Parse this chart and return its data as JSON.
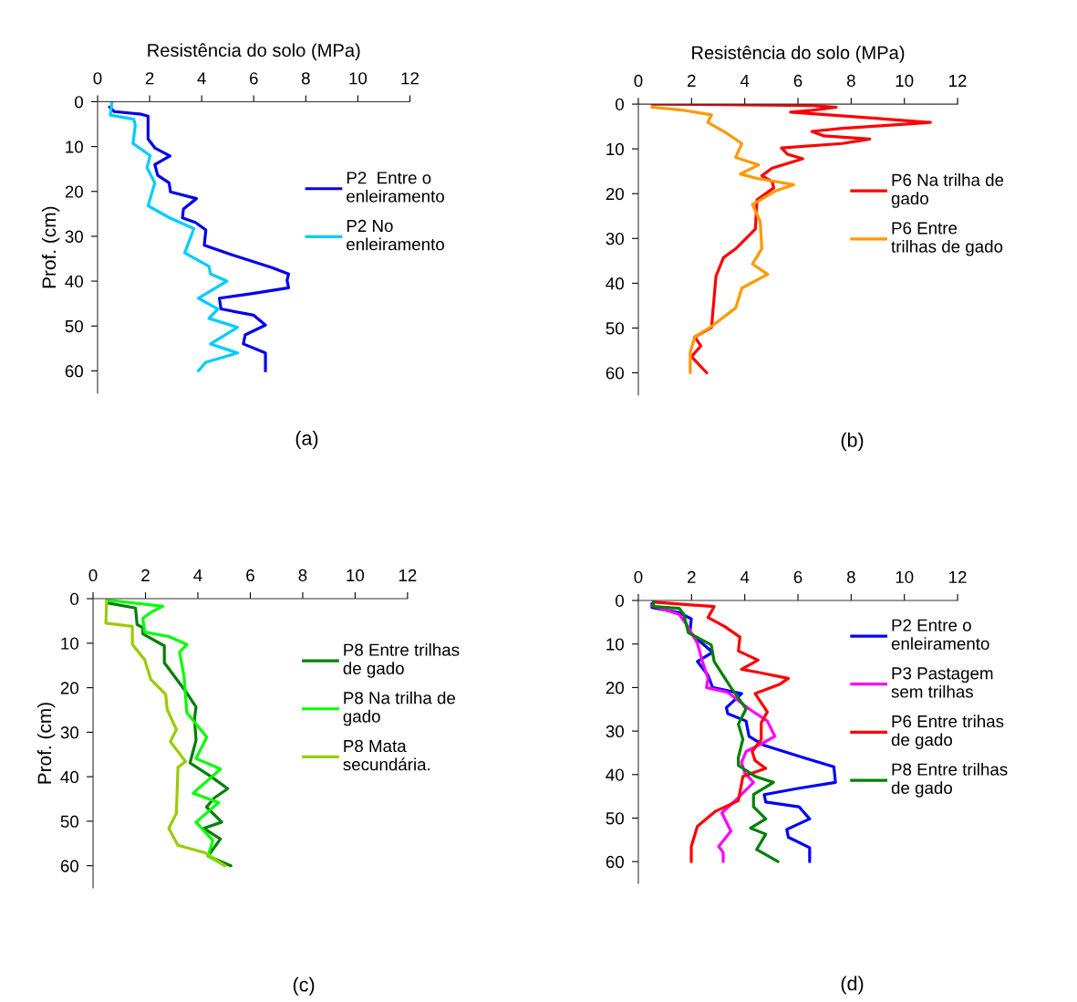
{
  "chart_data": [
    {
      "type": "line",
      "xlabel": "Resistência do solo (MPa)",
      "ylabel": "Prof. (cm)",
      "xlim": [
        0,
        12
      ],
      "xticks": [
        0,
        2,
        4,
        6,
        8,
        10,
        12
      ],
      "ylim": [
        65,
        0
      ],
      "yticks": [
        0,
        10,
        20,
        30,
        40,
        50,
        60
      ],
      "legend": "right",
      "annotations": [
        "(a)"
      ],
      "series": [
        {
          "name": "P2  Entre o\nenleiramento",
          "color": "#0000ee",
          "x": [
            0.46,
            0.64,
            1.68,
            1.94,
            1.94,
            2.2,
            2.78,
            2.2,
            2.31,
            2.75,
            2.8,
            3.8,
            3.3,
            3.26,
            3.76,
            4.16,
            4.1,
            5.09,
            6.7,
            7.34,
            7.28,
            7.34,
            5.9,
            4.68,
            4.74,
            6.0,
            6.45,
            5.67,
            5.6,
            6.45,
            6.45
          ],
          "values": [
            1.2,
            2.2,
            2.8,
            3.2,
            8.3,
            10.3,
            12.1,
            14,
            16.4,
            18.1,
            20.1,
            21.6,
            23.9,
            25.9,
            26.9,
            28.6,
            32,
            34,
            37,
            38.4,
            39.8,
            41.5,
            42.8,
            43.8,
            46.2,
            47.6,
            49.8,
            52,
            54,
            56,
            60
          ]
        },
        {
          "name": "P2 No\nenleiramento",
          "color": "#00ccff",
          "x": [
            0.55,
            0.49,
            1.39,
            1.45,
            1.36,
            2.02,
            1.9,
            2.2,
            1.94,
            2.77,
            3.7,
            3.35,
            4.28,
            4.34,
            4.97,
            3.87,
            4.62,
            4.28,
            5.38,
            4.34,
            5.38,
            4.16,
            3.87
          ],
          "values": [
            0.1,
            3,
            3.9,
            5.2,
            9.3,
            12,
            14.7,
            18.1,
            23.2,
            25.9,
            28.3,
            33.7,
            36.7,
            38.4,
            40,
            43.8,
            46.2,
            48.3,
            50.3,
            54,
            56,
            58.1,
            60
          ]
        }
      ]
    },
    {
      "type": "line",
      "xlabel": "Resistência do solo (MPa)",
      "xlim": [
        0,
        12
      ],
      "xticks": [
        0,
        2,
        4,
        6,
        8,
        10,
        12
      ],
      "ylim": [
        65,
        0
      ],
      "yticks": [
        0,
        10,
        20,
        30,
        40,
        50,
        60
      ],
      "legend": "right",
      "annotations": [
        "(b)"
      ],
      "series": [
        {
          "name": "P6 Na trilha de\ngado",
          "color": "#ff0000",
          "x": [
            0.51,
            6.52,
            7.44,
            6.52,
            5.72,
            8.81,
            10.98,
            7.67,
            6.52,
            6.98,
            8.7,
            7.67,
            5.38,
            5.61,
            6.18,
            5.03,
            4.64,
            5.03,
            5.09,
            4.46,
            4.4,
            3.66,
            3.2,
            2.92,
            2.75,
            2.12,
            2.35,
            2.0,
            2.57
          ],
          "values": [
            0,
            0.3,
            0.7,
            1.4,
            1.8,
            3.1,
            4.1,
            5.4,
            6.1,
            7.1,
            7.8,
            8.8,
            9.8,
            11.2,
            12.2,
            14.3,
            16,
            17.3,
            18.7,
            21.4,
            27.9,
            32.3,
            34.3,
            38.4,
            49.9,
            52,
            54,
            56.4,
            60
          ]
        },
        {
          "name": "P6 Entre\ntrilhas de gado",
          "color": "#ff9900",
          "x": [
            0.51,
            1.72,
            2.75,
            2.61,
            3.32,
            3.89,
            3.66,
            4.52,
            3.83,
            4.46,
            5.84,
            5.15,
            4.29,
            4.58,
            4.64,
            4.29,
            4.86,
            3.89,
            3.66,
            2.69,
            2.12,
            1.95,
            1.95
          ],
          "values": [
            0.7,
            1.4,
            2.4,
            4.1,
            6.5,
            8.8,
            11.9,
            13.6,
            15.6,
            16.6,
            18,
            19.4,
            22.4,
            26.2,
            32.3,
            35.7,
            38,
            41.1,
            45.5,
            49.9,
            52,
            55.4,
            60
          ]
        }
      ]
    },
    {
      "type": "line",
      "ylabel": "Prof. (cm)",
      "xlim": [
        0,
        12
      ],
      "xticks": [
        0,
        2,
        4,
        6,
        8,
        10,
        12
      ],
      "ylim": [
        65,
        0
      ],
      "yticks": [
        0,
        10,
        20,
        30,
        40,
        50,
        60
      ],
      "legend": "right",
      "annotations": [
        "(c)"
      ],
      "series": [
        {
          "name": "P8 Entre trilhas\nde gado",
          "color": "#008000",
          "x": [
            0.58,
            1.62,
            1.68,
            1.9,
            1.9,
            2.72,
            2.72,
            3.53,
            3.93,
            3.87,
            3.93,
            3.7,
            4.51,
            5.14,
            4.62,
            4.33,
            4.91,
            4.22,
            4.86,
            4.39,
            5.26
          ],
          "values": [
            1,
            2.1,
            5.8,
            6.5,
            7.9,
            10.6,
            14.4,
            20.8,
            24.3,
            27,
            31.8,
            36.9,
            40,
            42.7,
            44.8,
            46.8,
            50.2,
            51.6,
            54,
            57.8,
            60
          ]
        },
        {
          "name": "P8 Na trilha de\ngado",
          "color": "#00ff00",
          "x": [
            0.52,
            2.66,
            2.2,
            1.9,
            1.97,
            2.89,
            3.58,
            3.3,
            3.47,
            3.58,
            4.34,
            3.93,
            4.86,
            3.82,
            4.8,
            3.93,
            4.57,
            4.39,
            5.03
          ],
          "values": [
            0.3,
            1.7,
            3.1,
            4.4,
            7.5,
            8.5,
            10.3,
            12,
            17.4,
            25.6,
            31.1,
            35.9,
            38.3,
            43.7,
            45.8,
            50.2,
            54.3,
            57.8,
            60
          ]
        },
        {
          "name": "P8 Mata\nsecundária.",
          "color": "#99cc00",
          "x": [
            0.52,
            0.49,
            1.5,
            1.5,
            1.97,
            2.2,
            2.77,
            2.83,
            3.18,
            2.95,
            3.53,
            3.24,
            3.18,
            2.89,
            3.24,
            4.28,
            5.03
          ],
          "values": [
            0.2,
            5.5,
            6.2,
            10.3,
            13.7,
            18.1,
            21.5,
            24.9,
            29.4,
            32.1,
            36.6,
            37.9,
            48.2,
            51.6,
            55.4,
            57.1,
            60
          ]
        }
      ]
    },
    {
      "type": "line",
      "xlim": [
        0,
        12
      ],
      "xticks": [
        0,
        2,
        4,
        6,
        8,
        10,
        12
      ],
      "ylim": [
        65,
        0
      ],
      "yticks": [
        0,
        10,
        20,
        30,
        40,
        50,
        60
      ],
      "legend": "right",
      "annotations": [
        "(d)"
      ],
      "series": [
        {
          "name": "P2 Entre o\nenleiramento",
          "color": "#0000ff",
          "x": [
            0.51,
            0.51,
            1.54,
            1.99,
            1.94,
            2.79,
            2.22,
            2.62,
            2.79,
            3.88,
            3.31,
            3.36,
            4.05,
            4.16,
            4.73,
            6.21,
            7.35,
            7.41,
            5.99,
            4.73,
            4.79,
            6.04,
            6.44,
            5.58,
            5.64,
            6.44,
            6.44
          ],
          "values": [
            0.7,
            1.6,
            2.8,
            4.2,
            7.4,
            11.9,
            14,
            17.2,
            20,
            21.4,
            24.6,
            26,
            27.7,
            31.2,
            33.3,
            36.1,
            38.2,
            41.8,
            43.2,
            44.6,
            46.3,
            47.4,
            50.2,
            52.6,
            54.4,
            56.8,
            60
          ]
        },
        {
          "name": "P3 Pastagem\nsem trilhas",
          "color": "#ff00ff",
          "x": [
            0.51,
            1.54,
            1.82,
            2.22,
            2.39,
            2.62,
            2.56,
            3.36,
            4.16,
            4.85,
            5.13,
            4.73,
            4.05,
            3.88,
            4.0,
            4.33,
            3.71,
            3.14,
            3.48,
            3.02,
            3.19,
            3.19
          ],
          "values": [
            1.2,
            3.2,
            5.6,
            9.8,
            13.7,
            17.9,
            20,
            21.1,
            24.9,
            27.7,
            31.2,
            32.6,
            34.7,
            37.2,
            39.6,
            41.8,
            45.6,
            48.8,
            53,
            56.5,
            57.9,
            60
          ]
        },
        {
          "name": "P6 Entre trihas\nde gado",
          "color": "#ff0000",
          "x": [
            0.63,
            2.85,
            2.62,
            3.25,
            3.82,
            3.76,
            4.5,
            3.88,
            4.5,
            5.64,
            5.3,
            4.39,
            4.85,
            4.62,
            4.62,
            4.28,
            4.39,
            4.79,
            3.93,
            3.76,
            2.91,
            2.22,
            1.99,
            1.99
          ],
          "values": [
            0.4,
            1.4,
            3.9,
            6,
            8.4,
            11.6,
            13.7,
            15.8,
            16.5,
            17.9,
            19.3,
            21.4,
            25.6,
            28.1,
            31.9,
            34.7,
            36.8,
            38.6,
            40.4,
            46,
            48.4,
            51.9,
            56.5,
            60
          ]
        },
        {
          "name": "P8 Entre trilhas\nde gado",
          "color": "#008000",
          "x": [
            0.57,
            0.57,
            1.54,
            1.71,
            1.88,
            2.74,
            2.85,
            3.48,
            4.05,
            3.76,
            3.93,
            3.76,
            3.76,
            4.39,
            5.08,
            4.33,
            4.33,
            4.79,
            4.22,
            4.79,
            4.45,
            5.25
          ],
          "values": [
            0,
            1.4,
            1.8,
            3.2,
            7.4,
            10.2,
            14,
            20,
            24.9,
            28.4,
            31.9,
            36.1,
            37.9,
            40.4,
            41.8,
            44.6,
            47.4,
            50.2,
            52.3,
            53.7,
            57.2,
            60
          ]
        }
      ]
    }
  ]
}
